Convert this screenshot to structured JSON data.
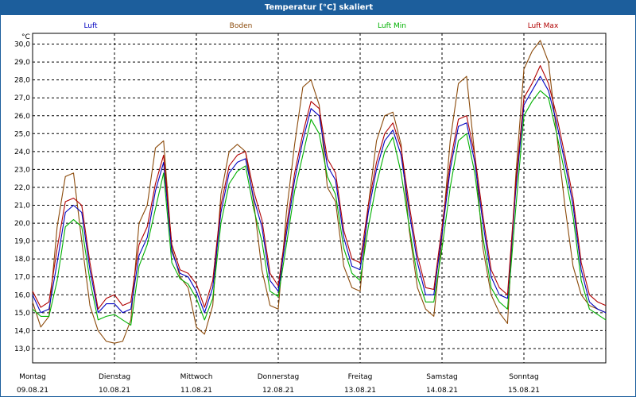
{
  "window": {
    "title": "Temperatur [°C] skaliert"
  },
  "colors": {
    "Luft": "#0000c0",
    "Boden": "#8b4a0a",
    "Luft Min": "#00b000",
    "Luft Max": "#b00000",
    "grid": "#000000"
  },
  "chart_data": {
    "type": "line",
    "title": "Temperatur [°C] skaliert",
    "ylabel": "°C",
    "ylim": [
      12.2,
      30.6
    ],
    "yticks": [
      "30,0",
      "29,0",
      "28,0",
      "27,0",
      "26,0",
      "25,0",
      "24,0",
      "23,0",
      "22,0",
      "21,0",
      "20,0",
      "19,0",
      "18,0",
      "17,0",
      "16,0",
      "15,0",
      "14,0",
      "13,0"
    ],
    "xlim": [
      0,
      7
    ],
    "xticks": [
      {
        "day": "Montag",
        "date": "09.08.21"
      },
      {
        "day": "Dienstag",
        "date": "10.08.21"
      },
      {
        "day": "Mittwoch",
        "date": "11.08.21"
      },
      {
        "day": "Donnerstag",
        "date": "12.08.21"
      },
      {
        "day": "Freitag",
        "date": "13.08.21"
      },
      {
        "day": "Samstag",
        "date": "14.08.21"
      },
      {
        "day": "Sonntag",
        "date": "15.08.21"
      }
    ],
    "grid": true,
    "legend": "top",
    "series": [
      {
        "name": "Luft",
        "x": [
          0,
          0.1,
          0.2,
          0.3,
          0.4,
          0.5,
          0.6,
          0.7,
          0.8,
          0.9,
          1.0,
          1.1,
          1.2,
          1.3,
          1.4,
          1.5,
          1.6,
          1.7,
          1.8,
          1.9,
          2.0,
          2.1,
          2.2,
          2.3,
          2.4,
          2.5,
          2.6,
          2.7,
          2.8,
          2.9,
          3.0,
          3.1,
          3.2,
          3.3,
          3.4,
          3.5,
          3.6,
          3.7,
          3.8,
          3.9,
          4.0,
          4.1,
          4.2,
          4.3,
          4.4,
          4.5,
          4.6,
          4.7,
          4.8,
          4.9,
          5.0,
          5.1,
          5.2,
          5.3,
          5.4,
          5.5,
          5.6,
          5.7,
          5.8,
          5.9,
          6.0,
          6.1,
          6.2,
          6.3,
          6.4,
          6.5,
          6.6,
          6.7,
          6.8,
          6.9,
          7.0
        ],
        "values": [
          16.0,
          15.0,
          15.2,
          17.8,
          20.6,
          21.0,
          20.6,
          17.4,
          15.0,
          15.5,
          15.5,
          15.0,
          15.2,
          18.2,
          19.2,
          21.8,
          23.4,
          18.4,
          17.2,
          17.0,
          16.2,
          15.0,
          16.4,
          20.6,
          22.8,
          23.4,
          23.6,
          21.4,
          19.8,
          16.8,
          16.2,
          19.4,
          22.4,
          24.6,
          26.4,
          26.0,
          23.2,
          22.4,
          19.2,
          17.6,
          17.4,
          20.6,
          23.0,
          24.6,
          25.2,
          23.8,
          20.6,
          17.8,
          16.0,
          16.0,
          19.4,
          23.0,
          25.4,
          25.6,
          23.4,
          20.0,
          17.0,
          16.0,
          15.8,
          21.8,
          26.6,
          27.4,
          28.2,
          27.4,
          25.6,
          23.4,
          21.0,
          17.4,
          15.6,
          15.2,
          15.0
        ]
      },
      {
        "name": "Boden",
        "x": [
          0,
          0.1,
          0.2,
          0.3,
          0.4,
          0.5,
          0.6,
          0.7,
          0.8,
          0.9,
          1.0,
          1.1,
          1.2,
          1.3,
          1.4,
          1.5,
          1.6,
          1.7,
          1.8,
          1.9,
          2.0,
          2.1,
          2.2,
          2.3,
          2.4,
          2.5,
          2.6,
          2.7,
          2.8,
          2.9,
          3.0,
          3.1,
          3.2,
          3.3,
          3.4,
          3.5,
          3.6,
          3.7,
          3.8,
          3.9,
          4.0,
          4.1,
          4.2,
          4.3,
          4.4,
          4.5,
          4.6,
          4.7,
          4.8,
          4.9,
          5.0,
          5.1,
          5.2,
          5.3,
          5.4,
          5.5,
          5.6,
          5.7,
          5.8,
          5.9,
          6.0,
          6.1,
          6.2,
          6.3,
          6.4,
          6.5,
          6.6,
          6.7,
          6.8,
          6.9,
          7.0
        ],
        "values": [
          15.6,
          14.2,
          14.8,
          19.8,
          22.6,
          22.8,
          19.0,
          15.4,
          14.0,
          13.4,
          13.3,
          13.4,
          14.6,
          20.0,
          21.0,
          24.2,
          24.6,
          18.6,
          17.0,
          16.4,
          14.2,
          13.8,
          15.4,
          21.6,
          24.0,
          24.4,
          24.0,
          21.2,
          17.4,
          15.4,
          15.2,
          20.6,
          24.4,
          27.6,
          28.0,
          26.6,
          22.0,
          21.2,
          17.6,
          16.4,
          16.2,
          21.0,
          24.6,
          26.0,
          26.2,
          24.4,
          19.6,
          16.4,
          15.2,
          14.8,
          19.2,
          24.6,
          27.8,
          28.2,
          23.8,
          18.6,
          16.0,
          15.0,
          14.4,
          22.6,
          28.6,
          29.6,
          30.2,
          29.0,
          25.0,
          21.0,
          17.6,
          16.0,
          15.4,
          15.2,
          15.0
        ]
      },
      {
        "name": "Luft Min",
        "x": [
          0,
          0.1,
          0.2,
          0.3,
          0.4,
          0.5,
          0.6,
          0.7,
          0.8,
          0.9,
          1.0,
          1.1,
          1.2,
          1.3,
          1.4,
          1.5,
          1.6,
          1.7,
          1.8,
          1.9,
          2.0,
          2.1,
          2.2,
          2.3,
          2.4,
          2.5,
          2.6,
          2.7,
          2.8,
          2.9,
          3.0,
          3.1,
          3.2,
          3.3,
          3.4,
          3.5,
          3.6,
          3.7,
          3.8,
          3.9,
          4.0,
          4.1,
          4.2,
          4.3,
          4.4,
          4.5,
          4.6,
          4.7,
          4.8,
          4.9,
          5.0,
          5.1,
          5.2,
          5.3,
          5.4,
          5.5,
          5.6,
          5.7,
          5.8,
          5.9,
          6.0,
          6.1,
          6.2,
          6.3,
          6.4,
          6.5,
          6.6,
          6.7,
          6.8,
          6.9,
          7.0
        ],
        "values": [
          15.2,
          14.8,
          14.8,
          16.8,
          19.8,
          20.2,
          19.8,
          16.8,
          14.6,
          14.8,
          14.9,
          14.6,
          14.3,
          17.6,
          18.8,
          20.8,
          22.8,
          17.8,
          16.9,
          16.6,
          15.8,
          14.6,
          15.8,
          20.0,
          22.2,
          22.9,
          23.2,
          20.8,
          19.0,
          16.2,
          15.9,
          18.8,
          21.8,
          23.8,
          25.8,
          25.0,
          22.6,
          21.6,
          18.6,
          17.2,
          16.8,
          19.8,
          22.2,
          24.0,
          24.8,
          22.8,
          19.8,
          17.0,
          15.6,
          15.6,
          18.6,
          22.0,
          24.6,
          25.0,
          22.8,
          19.2,
          16.4,
          15.6,
          15.2,
          20.8,
          26.0,
          26.8,
          27.4,
          27.0,
          25.0,
          22.8,
          20.4,
          16.8,
          15.2,
          14.9,
          14.6
        ]
      },
      {
        "name": "Luft Max",
        "x": [
          0,
          0.1,
          0.2,
          0.3,
          0.4,
          0.5,
          0.6,
          0.7,
          0.8,
          0.9,
          1.0,
          1.1,
          1.2,
          1.3,
          1.4,
          1.5,
          1.6,
          1.7,
          1.8,
          1.9,
          2.0,
          2.1,
          2.2,
          2.3,
          2.4,
          2.5,
          2.6,
          2.7,
          2.8,
          2.9,
          3.0,
          3.1,
          3.2,
          3.3,
          3.4,
          3.5,
          3.6,
          3.7,
          3.8,
          3.9,
          4.0,
          4.1,
          4.2,
          4.3,
          4.4,
          4.5,
          4.6,
          4.7,
          4.8,
          4.9,
          5.0,
          5.1,
          5.2,
          5.3,
          5.4,
          5.5,
          5.6,
          5.7,
          5.8,
          5.9,
          6.0,
          6.1,
          6.2,
          6.3,
          6.4,
          6.5,
          6.6,
          6.7,
          6.8,
          6.9,
          7.0
        ],
        "values": [
          16.2,
          15.3,
          15.6,
          18.6,
          21.2,
          21.4,
          21.0,
          17.8,
          15.2,
          15.8,
          16.0,
          15.4,
          15.6,
          18.8,
          19.8,
          22.2,
          23.8,
          18.8,
          17.4,
          17.2,
          16.6,
          15.3,
          16.8,
          21.0,
          23.2,
          23.8,
          24.0,
          21.8,
          20.2,
          17.2,
          16.5,
          19.8,
          22.8,
          25.0,
          26.8,
          26.4,
          23.6,
          22.8,
          19.6,
          18.0,
          17.8,
          21.0,
          23.4,
          25.0,
          25.6,
          24.2,
          21.0,
          18.2,
          16.4,
          16.3,
          19.8,
          23.4,
          25.8,
          26.0,
          23.8,
          20.4,
          17.4,
          16.4,
          16.0,
          22.2,
          27.0,
          27.8,
          28.8,
          27.8,
          26.0,
          23.8,
          21.4,
          17.8,
          16.0,
          15.6,
          15.4
        ]
      }
    ]
  }
}
